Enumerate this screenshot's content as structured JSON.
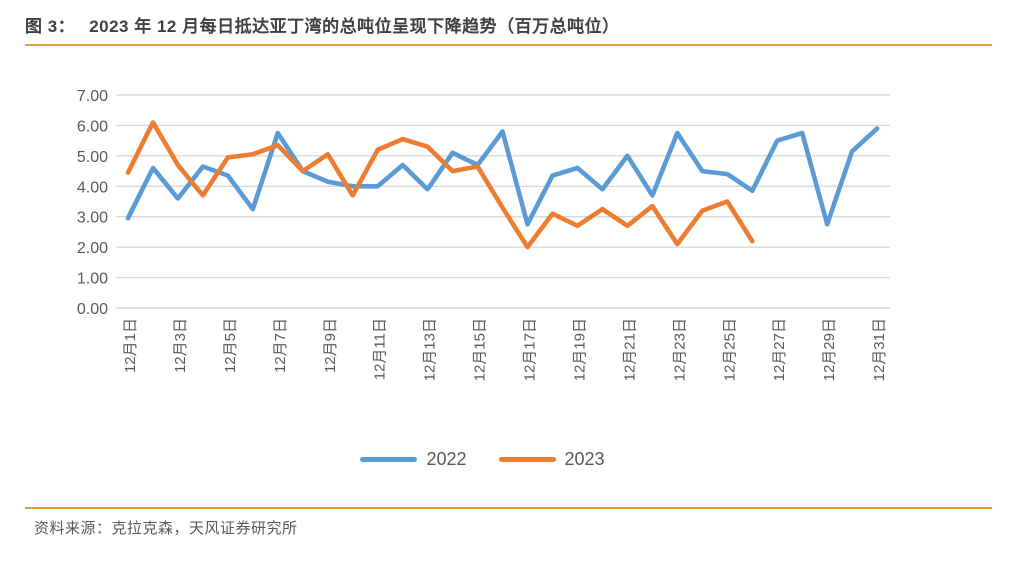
{
  "figure": {
    "label": "图 3：",
    "title": "2023 年 12 月每日抵达亚丁湾的总吨位呈现下降趋势（百万总吨位）"
  },
  "source": "资料来源：克拉克森，天风证券研究所",
  "colors": {
    "accent_rule": "#e2a03c",
    "gridline": "#d9d9d9",
    "axis_text": "#595959",
    "title_text": "#3f3f3f",
    "series_2022": "#5b9bd5",
    "series_2023": "#ed7d31"
  },
  "chart_data": {
    "type": "line",
    "title": "2023 年 12 月每日抵达亚丁湾的总吨位呈现下降趋势（百万总吨位）",
    "xlabel": "",
    "ylabel": "",
    "ylim": [
      0,
      7
    ],
    "grid": "horizontal",
    "legend_position": "bottom",
    "yticks": [
      "0.00",
      "1.00",
      "2.00",
      "3.00",
      "4.00",
      "5.00",
      "6.00",
      "7.00"
    ],
    "x_days": [
      1,
      2,
      3,
      4,
      5,
      6,
      7,
      8,
      9,
      10,
      11,
      12,
      13,
      14,
      15,
      16,
      17,
      18,
      19,
      20,
      21,
      22,
      23,
      24,
      25,
      26,
      27,
      28,
      29,
      30,
      31
    ],
    "x_tick_days": [
      1,
      3,
      5,
      7,
      9,
      11,
      13,
      15,
      17,
      19,
      21,
      23,
      25,
      27,
      29,
      31
    ],
    "x_tick_labels": [
      "12月1日",
      "12月3日",
      "12月5日",
      "12月7日",
      "12月9日",
      "12月11日",
      "12月13日",
      "12月15日",
      "12月17日",
      "12月19日",
      "12月21日",
      "12月23日",
      "12月25日",
      "12月27日",
      "12月29日",
      "12月31日"
    ],
    "legend": [
      "2022",
      "2023"
    ],
    "series": [
      {
        "name": "2022",
        "color": "#5b9bd5",
        "values": [
          2.95,
          4.6,
          3.6,
          4.65,
          4.35,
          3.25,
          5.75,
          4.5,
          4.15,
          4.0,
          4.0,
          4.7,
          3.9,
          5.1,
          4.7,
          5.8,
          2.75,
          4.35,
          4.6,
          3.9,
          5.0,
          3.7,
          5.75,
          4.5,
          4.4,
          3.85,
          5.5,
          5.75,
          2.75,
          5.15,
          5.9
        ]
      },
      {
        "name": "2023",
        "color": "#ed7d31",
        "values": [
          4.45,
          6.1,
          4.7,
          3.7,
          4.95,
          5.05,
          5.35,
          4.5,
          5.05,
          3.7,
          5.2,
          5.55,
          5.3,
          4.5,
          4.65,
          3.3,
          2.0,
          3.1,
          2.7,
          3.25,
          2.7,
          3.35,
          2.1,
          3.2,
          3.5,
          2.2
        ]
      }
    ]
  }
}
